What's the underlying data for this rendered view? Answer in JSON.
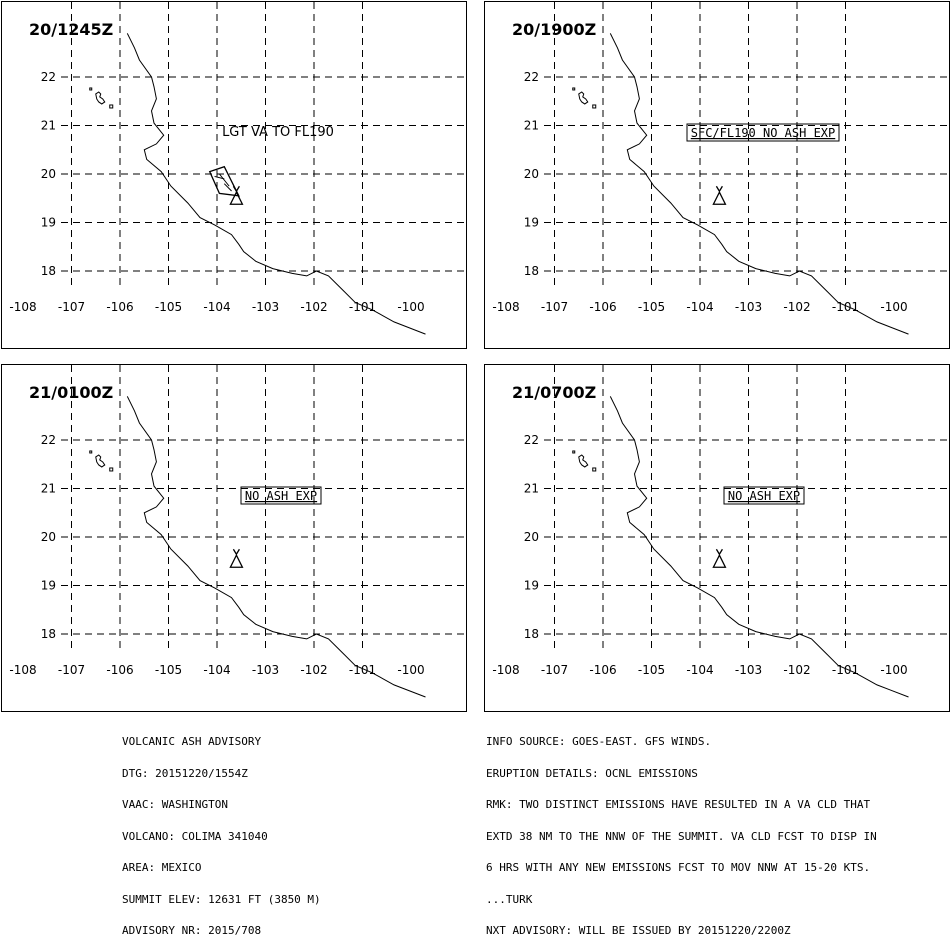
{
  "panels": [
    {
      "time_label": "20/1245Z",
      "annotation": "LGT VA TO FL190",
      "annotation_boxed": false,
      "ash_polygon": true
    },
    {
      "time_label": "20/1900Z",
      "annotation": "SFC/FL190 NO ASH EXP",
      "annotation_boxed": true,
      "ash_polygon": false
    },
    {
      "time_label": "21/0100Z",
      "annotation": "NO ASH EXP",
      "annotation_boxed": true,
      "ash_polygon": false
    },
    {
      "time_label": "21/0700Z",
      "annotation": "NO ASH EXP",
      "annotation_boxed": true,
      "ash_polygon": false
    }
  ],
  "map": {
    "lon_labels": [
      "-108",
      "-107",
      "-106",
      "-105",
      "-104",
      "-103",
      "-102",
      "-101",
      "-100"
    ],
    "lat_labels": [
      "22",
      "21",
      "20",
      "19",
      "18"
    ],
    "volcano": {
      "lon": -103.6,
      "lat": 19.5
    }
  },
  "advisory_left": [
    "VOLCANIC ASH ADVISORY",
    "DTG: 20151220/1554Z",
    "VAAC: WASHINGTON",
    "VOLCANO: COLIMA 341040",
    "AREA: MEXICO",
    "SUMMIT ELEV: 12631 FT (3850 M)",
    "ADVISORY NR: 2015/708"
  ],
  "advisory_right": [
    "INFO SOURCE: GOES-EAST. GFS WINDS.",
    "ERUPTION DETAILS: OCNL EMISSIONS",
    "RMK: TWO DISTINCT EMISSIONS HAVE RESULTED IN A VA CLD THAT",
    "EXTD 38 NM TO THE NNW OF THE SUMMIT. VA CLD FCST TO DISP IN",
    "6 HRS WITH ANY NEW EMISSIONS FCST TO MOV NNW AT 15-20 KTS.",
    "...TURK",
    "NXT ADVISORY: WILL BE ISSUED BY 20151220/2200Z"
  ]
}
